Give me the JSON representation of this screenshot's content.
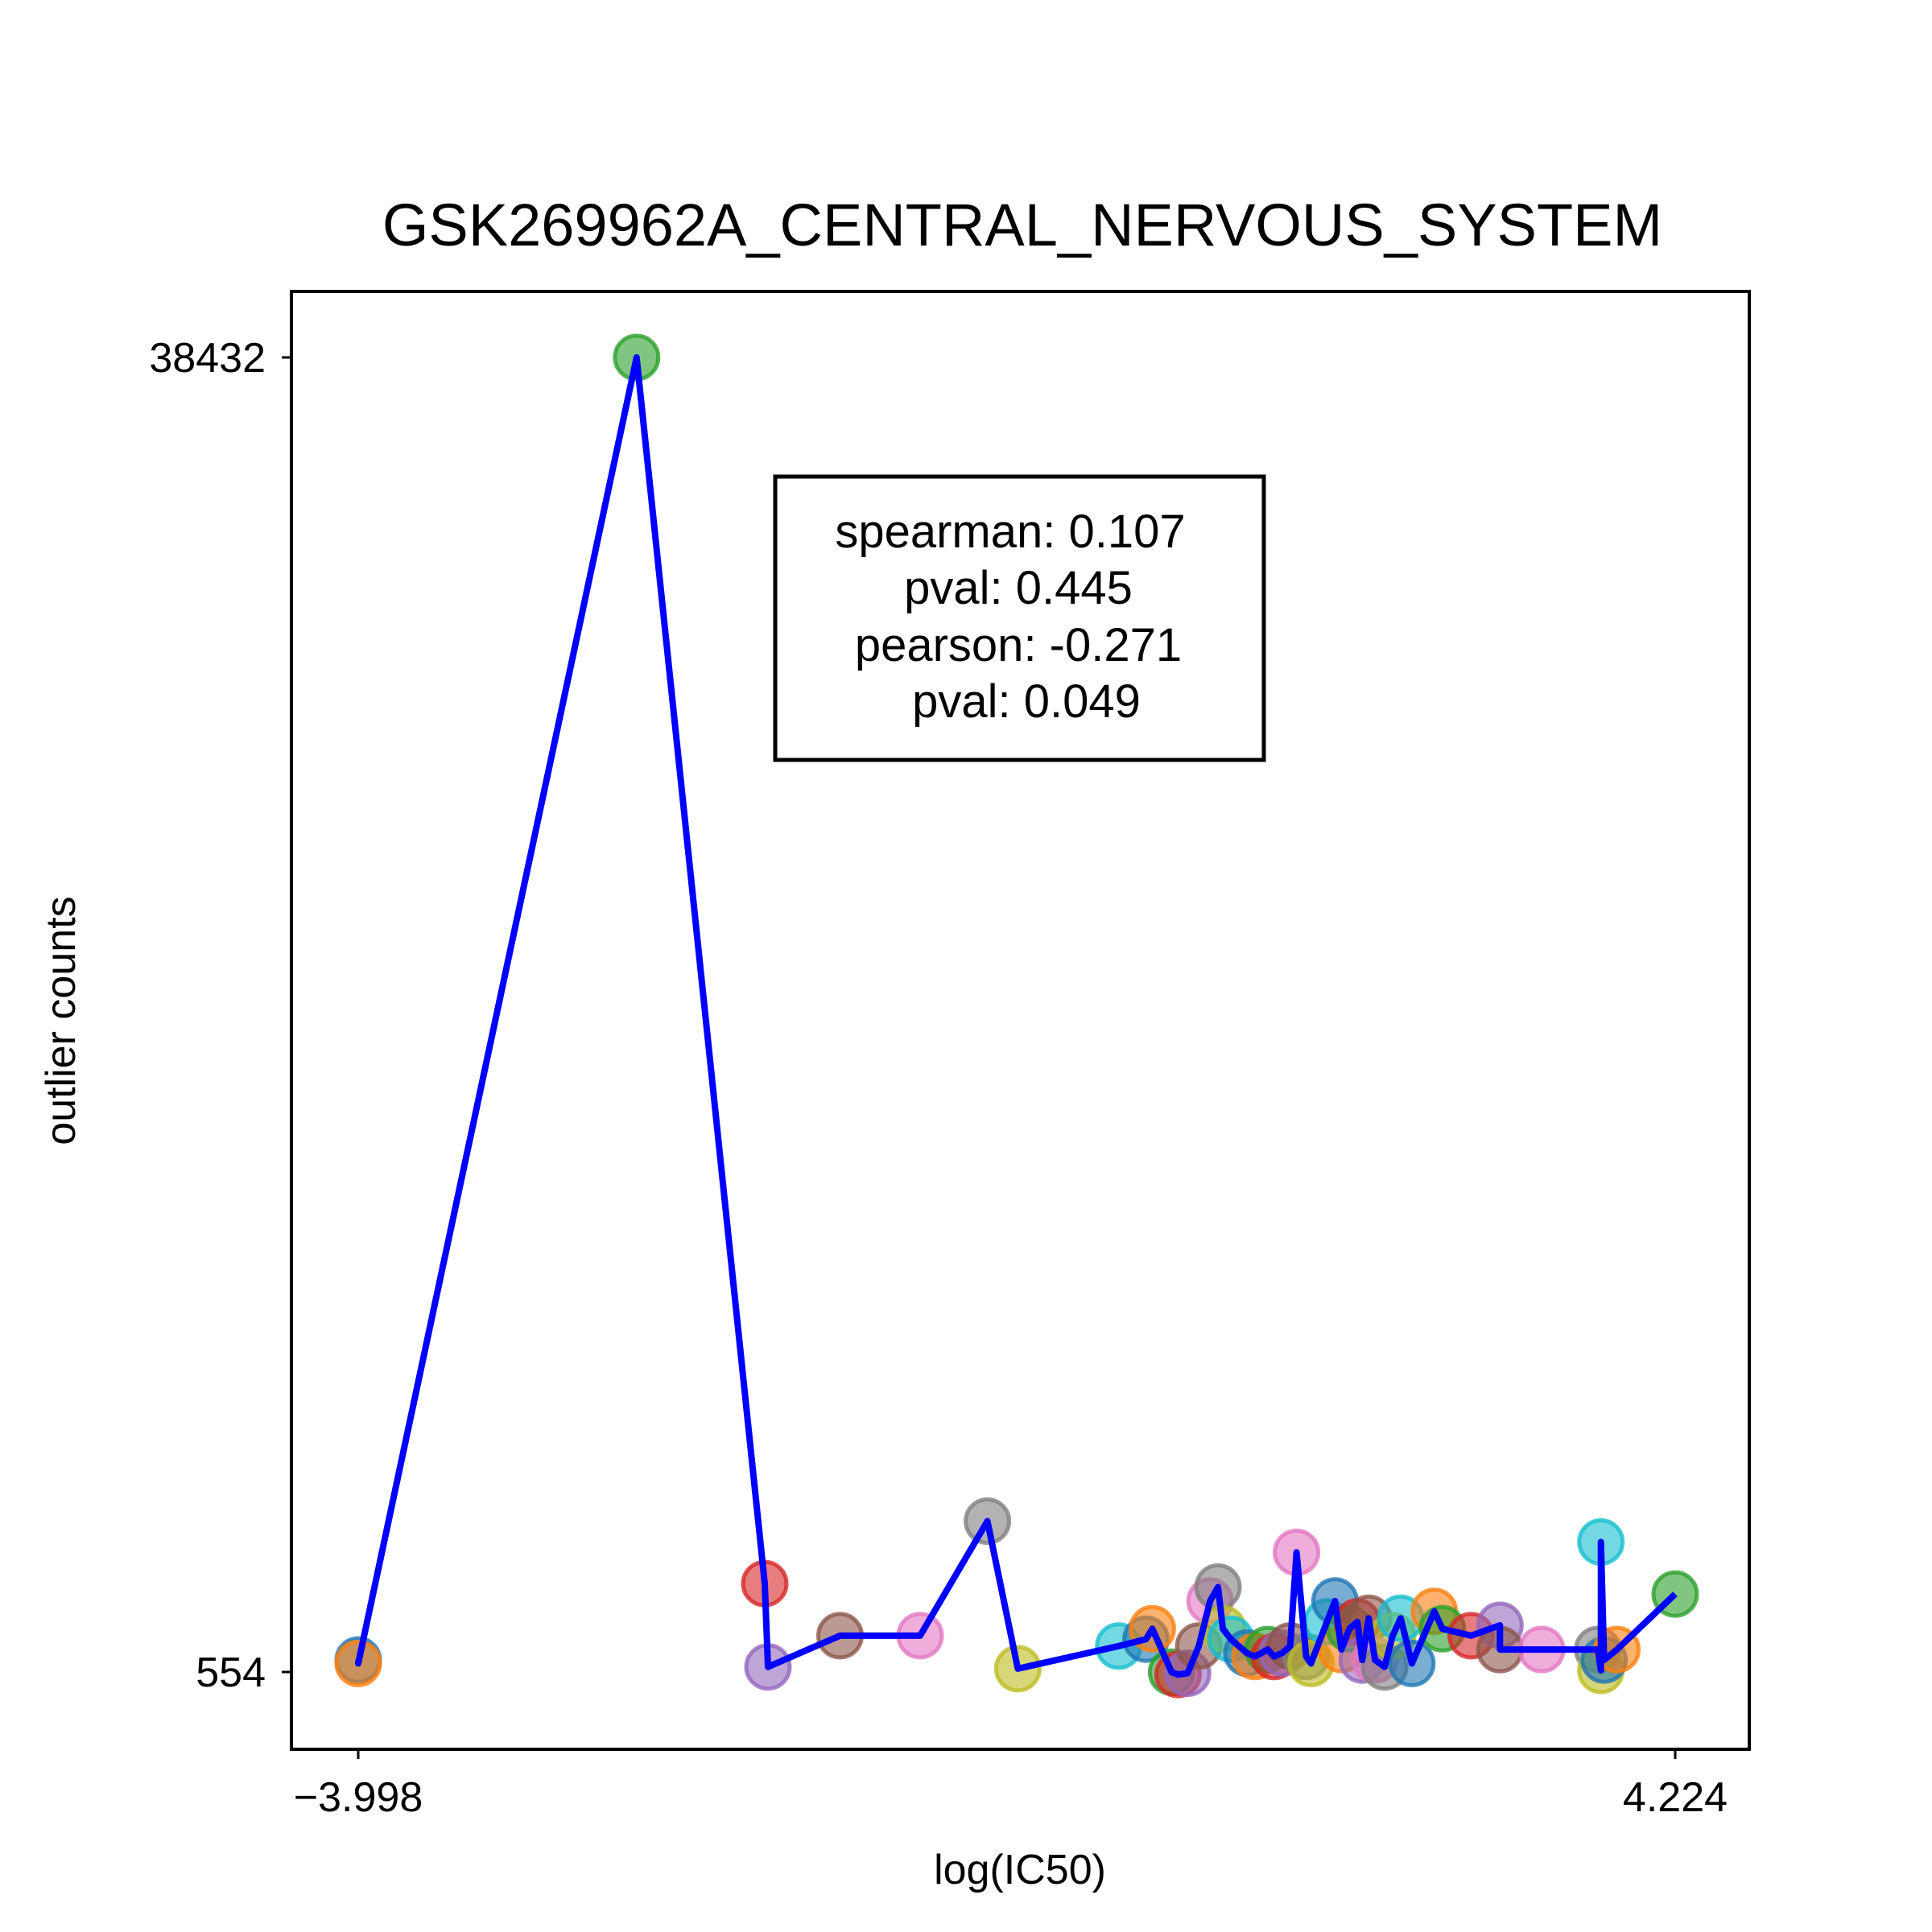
{
  "chart_data": {
    "type": "scatter",
    "title": "GSK269962A_CENTRAL_NERVOUS_SYSTEM",
    "xlabel": "log(IC50)",
    "ylabel": "outlier counts",
    "xlim": [
      -3.998,
      4.224
    ],
    "ylim": [
      554,
      38432
    ],
    "x_ticks": [
      "−3.998",
      "4.224"
    ],
    "y_ticks": [
      "38432",
      "554"
    ],
    "grid": false,
    "legend": "none",
    "line_color": "#0000ff",
    "stats": {
      "spearman": "spearman: 0.107",
      "spearman_pval": "pval: 0.445",
      "pearson": "pearson: -0.271",
      "pearson_pval": "pval: 0.049"
    },
    "points": [
      {
        "x": -3.998,
        "y": 900,
        "color": "#1f77b4"
      },
      {
        "x": -3.998,
        "y": 800,
        "color": "#ff7f0e"
      },
      {
        "x": -2.26,
        "y": 38432,
        "color": "#2ca02c"
      },
      {
        "x": -1.46,
        "y": 3100,
        "color": "#d62728"
      },
      {
        "x": -1.44,
        "y": 700,
        "color": "#9467bd"
      },
      {
        "x": -0.99,
        "y": 1600,
        "color": "#8c564b"
      },
      {
        "x": -0.49,
        "y": 1600,
        "color": "#e377c2"
      },
      {
        "x": -0.07,
        "y": 4900,
        "color": "#7f7f7f"
      },
      {
        "x": 0.12,
        "y": 650,
        "color": "#bcbd22"
      },
      {
        "x": 0.75,
        "y": 1300,
        "color": "#17becf"
      },
      {
        "x": 0.92,
        "y": 1500,
        "color": "#1f77b4"
      },
      {
        "x": 0.96,
        "y": 1800,
        "color": "#ff7f0e"
      },
      {
        "x": 1.08,
        "y": 550,
        "color": "#2ca02c"
      },
      {
        "x": 1.12,
        "y": 480,
        "color": "#d62728"
      },
      {
        "x": 1.18,
        "y": 520,
        "color": "#9467bd"
      },
      {
        "x": 1.25,
        "y": 1300,
        "color": "#8c564b"
      },
      {
        "x": 1.32,
        "y": 2600,
        "color": "#e377c2"
      },
      {
        "x": 1.37,
        "y": 3000,
        "color": "#7f7f7f"
      },
      {
        "x": 1.4,
        "y": 1800,
        "color": "#bcbd22"
      },
      {
        "x": 1.45,
        "y": 1500,
        "color": "#17becf"
      },
      {
        "x": 1.55,
        "y": 1100,
        "color": "#1f77b4"
      },
      {
        "x": 1.6,
        "y": 1000,
        "color": "#ff7f0e"
      },
      {
        "x": 1.68,
        "y": 1200,
        "color": "#2ca02c"
      },
      {
        "x": 1.72,
        "y": 1000,
        "color": "#d62728"
      },
      {
        "x": 1.77,
        "y": 1100,
        "color": "#9467bd"
      },
      {
        "x": 1.82,
        "y": 1300,
        "color": "#8c564b"
      },
      {
        "x": 1.86,
        "y": 4000,
        "color": "#e377c2"
      },
      {
        "x": 1.92,
        "y": 1000,
        "color": "#7f7f7f"
      },
      {
        "x": 1.95,
        "y": 800,
        "color": "#bcbd22"
      },
      {
        "x": 2.05,
        "y": 2000,
        "color": "#17becf"
      },
      {
        "x": 2.1,
        "y": 2600,
        "color": "#1f77b4"
      },
      {
        "x": 2.14,
        "y": 1200,
        "color": "#ff7f0e"
      },
      {
        "x": 2.19,
        "y": 1800,
        "color": "#2ca02c"
      },
      {
        "x": 2.24,
        "y": 2000,
        "color": "#d62728"
      },
      {
        "x": 2.27,
        "y": 900,
        "color": "#9467bd"
      },
      {
        "x": 2.31,
        "y": 2100,
        "color": "#8c564b"
      },
      {
        "x": 2.35,
        "y": 900,
        "color": "#e377c2"
      },
      {
        "x": 2.41,
        "y": 700,
        "color": "#7f7f7f"
      },
      {
        "x": 2.46,
        "y": 1600,
        "color": "#bcbd22"
      },
      {
        "x": 2.51,
        "y": 2100,
        "color": "#17becf"
      },
      {
        "x": 2.58,
        "y": 800,
        "color": "#1f77b4"
      },
      {
        "x": 2.72,
        "y": 2300,
        "color": "#ff7f0e"
      },
      {
        "x": 2.77,
        "y": 1800,
        "color": "#2ca02c"
      },
      {
        "x": 2.95,
        "y": 1600,
        "color": "#d62728"
      },
      {
        "x": 3.13,
        "y": 1900,
        "color": "#9467bd"
      },
      {
        "x": 3.13,
        "y": 1200,
        "color": "#8c564b"
      },
      {
        "x": 3.39,
        "y": 1200,
        "color": "#e377c2"
      },
      {
        "x": 3.74,
        "y": 1200,
        "color": "#7f7f7f"
      },
      {
        "x": 3.76,
        "y": 600,
        "color": "#bcbd22"
      },
      {
        "x": 3.76,
        "y": 4300,
        "color": "#17becf"
      },
      {
        "x": 3.78,
        "y": 900,
        "color": "#1f77b4"
      },
      {
        "x": 3.86,
        "y": 1200,
        "color": "#ff7f0e"
      },
      {
        "x": 4.224,
        "y": 2800,
        "color": "#2ca02c"
      }
    ]
  }
}
